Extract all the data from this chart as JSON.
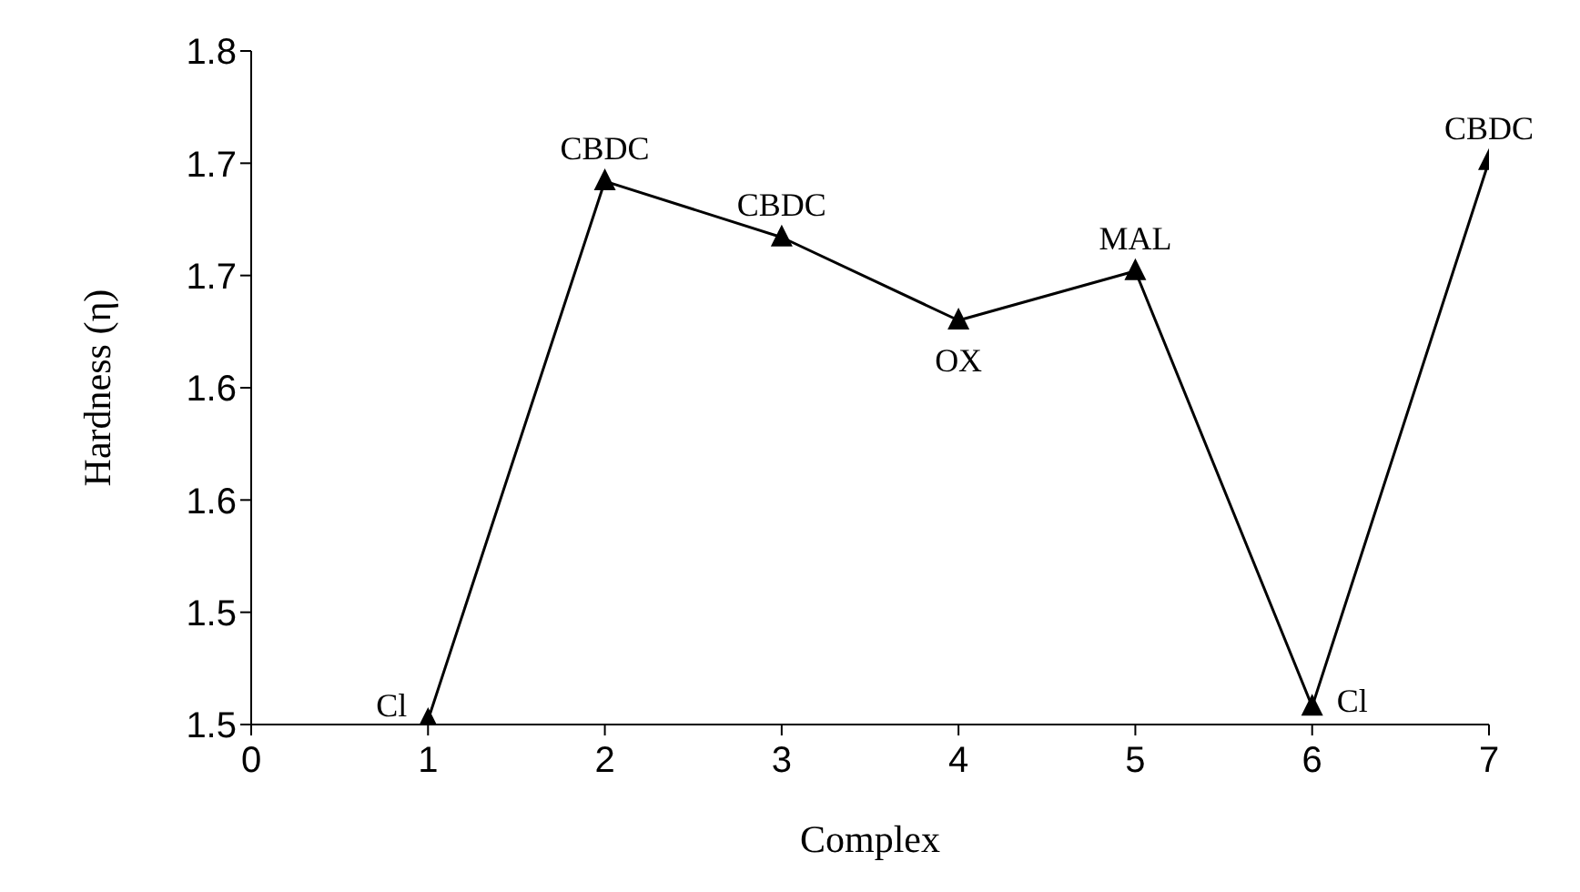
{
  "chart_data": {
    "type": "line",
    "xlabel": "Complex",
    "ylabel": "Hardness (η)",
    "x": [
      1,
      2,
      3,
      4,
      5,
      6,
      7
    ],
    "series": [
      {
        "color": "#000000",
        "values": [
          1.502,
          1.742,
          1.717,
          1.68,
          1.702,
          1.508,
          1.751
        ]
      }
    ],
    "xlim": [
      0,
      7
    ],
    "xticks": [
      0,
      1,
      2,
      3,
      4,
      5,
      6,
      7
    ],
    "ylim": [
      1.5,
      1.8
    ],
    "yticks": [
      {
        "value": 1.5,
        "label": "1.5"
      },
      {
        "value": 1.55,
        "label": "1.5"
      },
      {
        "value": 1.6,
        "label": "1.6"
      },
      {
        "value": 1.65,
        "label": "1.6"
      },
      {
        "value": 1.7,
        "label": "1.7"
      },
      {
        "value": 1.75,
        "label": "1.7"
      },
      {
        "value": 1.8,
        "label": "1.8"
      }
    ],
    "marker": "triangle",
    "line_style": "solid",
    "grid": false,
    "legend": false,
    "annotations": [
      {
        "text": "Cl",
        "x": 1,
        "y": 1.502
      },
      {
        "text": "CBDC",
        "x": 2,
        "y": 1.742
      },
      {
        "text": "CBDC",
        "x": 3,
        "y": 1.717
      },
      {
        "text": "OX",
        "x": 4,
        "y": 1.68
      },
      {
        "text": "MAL",
        "x": 5,
        "y": 1.702
      },
      {
        "text": "Cl",
        "x": 6,
        "y": 1.508
      },
      {
        "text": "CBDC",
        "x": 7,
        "y": 1.751
      }
    ]
  }
}
